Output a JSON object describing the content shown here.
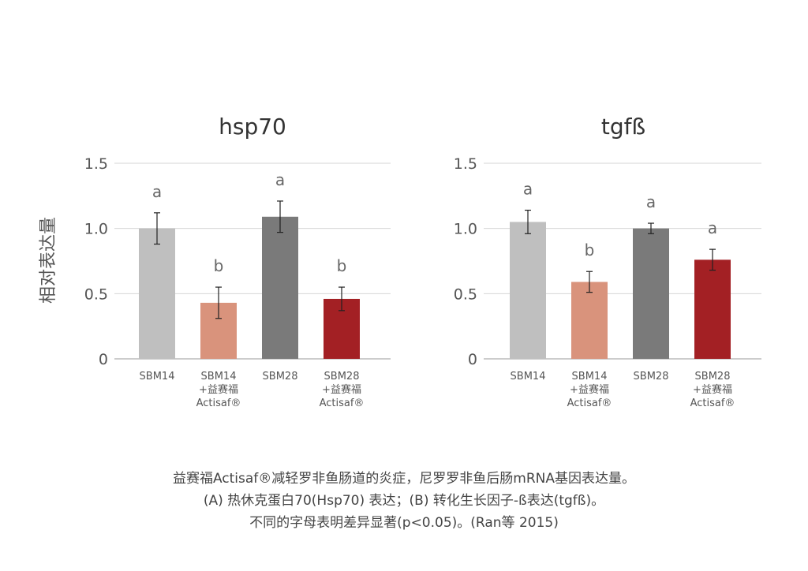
{
  "y_axis_label": "相对表达量",
  "chart_data": [
    {
      "type": "bar",
      "title": "hsp70",
      "categories": [
        "SBM14",
        "SBM14\n+益赛福\nActisaf®",
        "SBM28",
        "SBM28\n+益赛福\nActisaf®"
      ],
      "values": [
        1.0,
        0.43,
        1.09,
        0.46
      ],
      "errors": [
        0.12,
        0.12,
        0.12,
        0.09
      ],
      "significance": [
        "a",
        "b",
        "a",
        "b"
      ],
      "ylim": [
        0,
        1.5
      ],
      "yticks": [
        "0",
        "0.5",
        "1.0",
        "1.5"
      ],
      "ylabel": "相对表达量",
      "grid": true
    },
    {
      "type": "bar",
      "title": "tgfß",
      "categories": [
        "SBM14",
        "SBM14\n+益赛福\nActisaf®",
        "SBM28",
        "SBM28\n+益赛福\nActisaf®"
      ],
      "values": [
        1.05,
        0.59,
        1.0,
        0.76
      ],
      "errors": [
        0.09,
        0.08,
        0.04,
        0.08
      ],
      "significance": [
        "a",
        "b",
        "a",
        "a"
      ],
      "ylim": [
        0,
        1.5
      ],
      "yticks": [
        "0",
        "0.5",
        "1.0",
        "1.5"
      ],
      "ylabel": "",
      "grid": true
    }
  ],
  "colors": [
    "#bfbfbf",
    "#d9937c",
    "#7a7a7a",
    "#a32024"
  ],
  "caption": {
    "line1": "益赛福Actisaf®减轻罗非鱼肠道的炎症，尼罗罗非鱼后肠mRNA基因表达量。",
    "line2": "(A) 热休克蛋白70(Hsp70) 表达；(B) 转化生长因子-ß表达(tgfß)。",
    "line3": "不同的字母表明差异显著(p<0.05)。(Ran等 2015)"
  }
}
